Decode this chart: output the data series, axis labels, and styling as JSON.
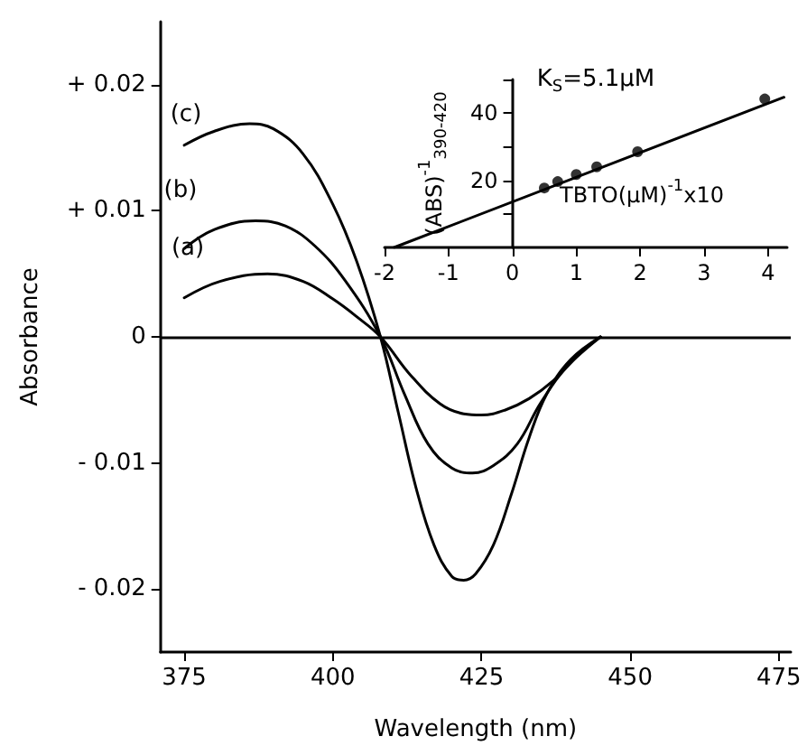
{
  "chart_data": [
    {
      "type": "line",
      "xlabel": "Wavelength (nm)",
      "ylabel": "Absorbance",
      "xlim": [
        371,
        477
      ],
      "ylim": [
        -0.025,
        0.025
      ],
      "xticks": [
        375,
        400,
        425,
        450,
        475
      ],
      "yticks": [
        {
          "value": -0.02,
          "label": "- 0.02"
        },
        {
          "value": -0.01,
          "label": "- 0.01"
        },
        {
          "value": 0,
          "label": "0"
        },
        {
          "value": 0.01,
          "label": "+ 0.01"
        },
        {
          "value": 0.02,
          "label": "+ 0.02"
        }
      ],
      "grid": false,
      "line_style": "solid",
      "marker": "none",
      "ref_lines": [
        {
          "axis": "y",
          "value": 0,
          "color": "#000000"
        }
      ],
      "annotations": [
        "(c)",
        "(b)",
        "(a)"
      ],
      "series": [
        {
          "color": "#000000",
          "x": [
            375,
            380,
            386,
            390,
            395,
            400,
            404,
            408,
            411,
            414,
            417,
            420,
            422,
            424,
            427,
            430,
            433,
            436,
            440,
            445
          ],
          "values": [
            0.0152,
            0.0163,
            0.0169,
            0.0165,
            0.0145,
            0.0105,
            0.006,
            0,
            -0.006,
            -0.012,
            -0.0165,
            -0.019,
            -0.0193,
            -0.0188,
            -0.0165,
            -0.0125,
            -0.008,
            -0.0045,
            -0.0018,
            0
          ]
        },
        {
          "color": "#000000",
          "x": [
            375,
            380,
            387,
            392,
            397,
            402,
            408,
            412,
            416,
            420,
            423.5,
            427,
            431,
            435,
            440,
            445
          ],
          "values": [
            0.007,
            0.0085,
            0.0092,
            0.0088,
            0.0072,
            0.0045,
            0,
            -0.0045,
            -0.0085,
            -0.0104,
            -0.0108,
            -0.0102,
            -0.0085,
            -0.0052,
            -0.002,
            0
          ]
        },
        {
          "color": "#000000",
          "x": [
            375,
            381,
            389,
            395,
            400,
            404,
            408,
            413,
            418,
            422,
            425,
            429,
            433,
            437,
            441,
            445
          ],
          "values": [
            0.0031,
            0.0044,
            0.005,
            0.0044,
            0.003,
            0.0016,
            0,
            -0.003,
            -0.0053,
            -0.0061,
            -0.0062,
            -0.0058,
            -0.0049,
            -0.0035,
            -0.0016,
            0
          ]
        }
      ]
    },
    {
      "type": "scatter",
      "xlabel": "TBTO(μM)$^{-1}$x10",
      "ylabel": "(ABS)$^{-1}$$_{390-420}$",
      "xlim": [
        -2,
        4.3
      ],
      "ylim": [
        0,
        50
      ],
      "xticks": [
        -2,
        -1,
        0,
        1,
        2,
        3,
        4
      ],
      "yticks": [
        {
          "value": 10,
          "label": null
        },
        20,
        {
          "value": 30,
          "label": null
        },
        40,
        {
          "value": 50,
          "label": null
        }
      ],
      "grid": false,
      "annotations": [
        "K$_{S}$=5.1μM"
      ],
      "series": [
        {
          "type": "scatter",
          "marker": "circle",
          "color": "#000000",
          "x": [
            0.5,
            0.71,
            1.0,
            1.32,
            1.96,
            3.95
          ],
          "values": [
            17.7,
            19.6,
            21.7,
            24,
            28.5,
            44.2
          ]
        },
        {
          "type": "line",
          "marker": "none",
          "color": "#000000",
          "x": [
            -1.85,
            4.25
          ],
          "values": [
            0,
            44.7
          ]
        }
      ]
    }
  ]
}
